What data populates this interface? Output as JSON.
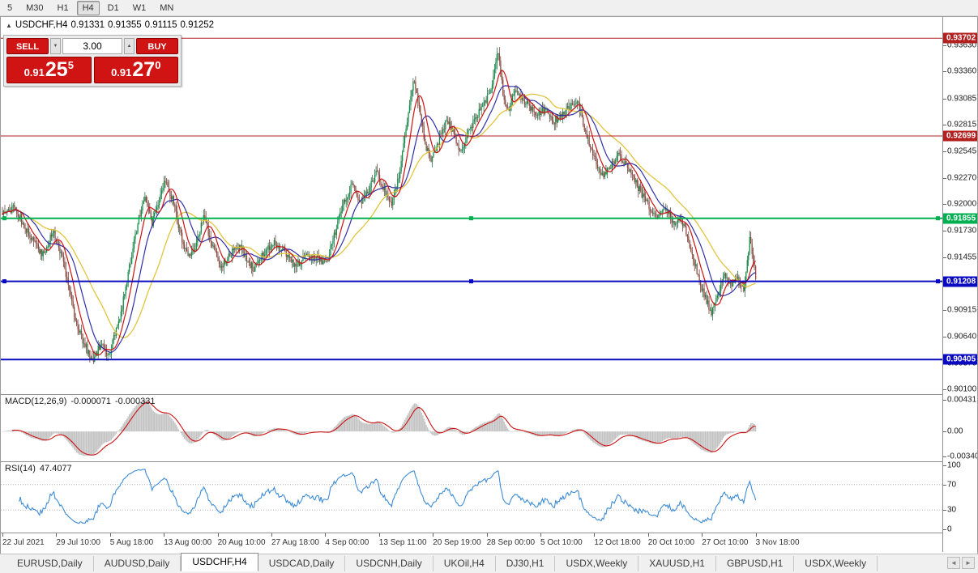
{
  "colors": {
    "trade_red": "#d01313",
    "line_red": "#b22020",
    "line_green": "#00b050",
    "line_blue": "#0a0ac0",
    "candle_up": "#0c9148",
    "candle_up_edge": "#0a5c30",
    "candle_down": "#8f4a40",
    "candle_down_edge": "#5e2a22",
    "ma_red": "#cc1111",
    "ma_blue": "#3030a8",
    "ma_yellow": "#e2c43c",
    "macd_hist": "#c3c3c3",
    "macd_signal": "#cc1111",
    "rsi_line": "#3d8bd4"
  },
  "icons": {
    "collapse": "▲",
    "spin_up": "▲",
    "spin_down": "▼",
    "tab_scroll_left": "◄",
    "tab_scroll_right": "►"
  },
  "toolbar": {
    "timeframes": [
      "5",
      "M30",
      "H1",
      "H4",
      "D1",
      "W1",
      "MN"
    ],
    "active": "H4"
  },
  "chart": {
    "header": {
      "title": "USDCHF,H4",
      "open": "0.91331",
      "high": "0.91355",
      "low": "0.91115",
      "close": "0.91252"
    },
    "trade_panel": {
      "sell_label": "SELL",
      "buy_label": "BUY",
      "volume": "3.00",
      "sell_price": {
        "prefix": "0.91",
        "pips": "25",
        "sup": "5"
      },
      "buy_price": {
        "prefix": "0.91",
        "pips": "27",
        "sup": "0"
      }
    },
    "hlines": [
      {
        "price": 0.93702,
        "label": "0.93702",
        "color_key": "line_red",
        "width": 1,
        "handles": false
      },
      {
        "price": 0.92699,
        "label": "0.92699",
        "color_key": "line_red",
        "width": 1,
        "handles": false
      },
      {
        "price": 0.91855,
        "label": "0.91855",
        "color_key": "line_green",
        "width": 2,
        "handles": true
      },
      {
        "price": 0.91208,
        "label": "0.91208",
        "color_key": "line_blue",
        "width": 2,
        "handles": true
      },
      {
        "price": 0.90405,
        "label": "0.90405",
        "color_key": "line_blue",
        "width": 2,
        "handles": false
      }
    ],
    "y_ticks": [
      "0.93630",
      "0.93360",
      "0.93085",
      "0.92815",
      "0.92545",
      "0.92270",
      "0.92000",
      "0.91730",
      "0.91455",
      "0.91185",
      "0.90915",
      "0.90640",
      "0.90370",
      "0.90100"
    ],
    "x_labels": [
      "22 Jul 2021",
      "29 Jul 10:00",
      "5 Aug 18:00",
      "13 Aug 00:00",
      "20 Aug 10:00",
      "27 Aug 18:00",
      "4 Sep 00:00",
      "13 Sep 11:00",
      "20 Sep 19:00",
      "28 Sep 00:00",
      "5 Oct 10:00",
      "12 Oct 18:00",
      "20 Oct 10:00",
      "27 Oct 10:00",
      "3 Nov 18:00"
    ]
  },
  "macd": {
    "name": "MACD(12,26,9)",
    "value_main": "-0.000071",
    "value_signal": "-0.000331",
    "ticks": [
      {
        "label": "0.00431",
        "value": 0.00431
      },
      {
        "label": "0.00",
        "value": 0
      },
      {
        "label": "-0.00340",
        "value": -0.0034
      }
    ]
  },
  "rsi": {
    "name": "RSI(14)",
    "value": "47.4077",
    "ticks": [
      {
        "label": "100",
        "value": 100
      },
      {
        "label": "70",
        "value": 70
      },
      {
        "label": "30",
        "value": 30
      },
      {
        "label": "0",
        "value": 0
      }
    ],
    "levels": [
      70,
      30
    ]
  },
  "tabs": {
    "active_index": 2,
    "items": [
      "EURUSD,Daily",
      "AUDUSD,Daily",
      "USDCHF,H4",
      "USDCAD,Daily",
      "USDCNH,Daily",
      "UKOil,H4",
      "DJ30,H1",
      "USDX,Weekly",
      "XAUUSD,H1",
      "GBPUSD,H1",
      "USDX,Weekly"
    ]
  },
  "chart_data": {
    "type": "candlestick",
    "symbol": "USDCHF",
    "timeframe": "H4",
    "ohlc_current": {
      "open": 0.91331,
      "high": 0.91355,
      "low": 0.91115,
      "close": 0.91252
    },
    "price_max": 0.9392,
    "price_min": 0.9005,
    "num_candles": 630,
    "data_right_fraction": 0.8,
    "horizontal_levels": [
      0.93702,
      0.92699,
      0.91855,
      0.91208,
      0.90405
    ],
    "moving_average_periods": {
      "red": 10,
      "blue": 21,
      "yellow": 45
    },
    "macd_params": [
      12,
      26,
      9
    ],
    "rsi_period": 14,
    "price_path": [
      [
        0.0,
        0.919
      ],
      [
        0.016,
        0.9197
      ],
      [
        0.038,
        0.9165
      ],
      [
        0.054,
        0.9148
      ],
      [
        0.067,
        0.9172
      ],
      [
        0.081,
        0.914
      ],
      [
        0.097,
        0.908
      ],
      [
        0.108,
        0.9058
      ],
      [
        0.12,
        0.9038
      ],
      [
        0.131,
        0.9058
      ],
      [
        0.14,
        0.9042
      ],
      [
        0.153,
        0.9075
      ],
      [
        0.163,
        0.911
      ],
      [
        0.172,
        0.915
      ],
      [
        0.181,
        0.9185
      ],
      [
        0.188,
        0.9207
      ],
      [
        0.199,
        0.918
      ],
      [
        0.206,
        0.92
      ],
      [
        0.215,
        0.9226
      ],
      [
        0.226,
        0.9205
      ],
      [
        0.237,
        0.9168
      ],
      [
        0.247,
        0.9145
      ],
      [
        0.258,
        0.916
      ],
      [
        0.267,
        0.919
      ],
      [
        0.277,
        0.916
      ],
      [
        0.29,
        0.9135
      ],
      [
        0.303,
        0.915
      ],
      [
        0.317,
        0.9155
      ],
      [
        0.333,
        0.9133
      ],
      [
        0.346,
        0.915
      ],
      [
        0.36,
        0.916
      ],
      [
        0.376,
        0.915
      ],
      [
        0.389,
        0.9135
      ],
      [
        0.403,
        0.915
      ],
      [
        0.417,
        0.9145
      ],
      [
        0.43,
        0.9138
      ],
      [
        0.443,
        0.9175
      ],
      [
        0.454,
        0.9205
      ],
      [
        0.465,
        0.922
      ],
      [
        0.475,
        0.92
      ],
      [
        0.486,
        0.9215
      ],
      [
        0.497,
        0.9232
      ],
      [
        0.508,
        0.9213
      ],
      [
        0.516,
        0.9198
      ],
      [
        0.527,
        0.923
      ],
      [
        0.538,
        0.929
      ],
      [
        0.546,
        0.9328
      ],
      [
        0.554,
        0.9298
      ],
      [
        0.561,
        0.926
      ],
      [
        0.57,
        0.9244
      ],
      [
        0.581,
        0.927
      ],
      [
        0.591,
        0.9286
      ],
      [
        0.6,
        0.927
      ],
      [
        0.608,
        0.9254
      ],
      [
        0.618,
        0.9272
      ],
      [
        0.629,
        0.929
      ],
      [
        0.64,
        0.9302
      ],
      [
        0.651,
        0.9325
      ],
      [
        0.658,
        0.9358
      ],
      [
        0.665,
        0.931
      ],
      [
        0.672,
        0.9295
      ],
      [
        0.68,
        0.9318
      ],
      [
        0.688,
        0.931
      ],
      [
        0.699,
        0.93
      ],
      [
        0.71,
        0.929
      ],
      [
        0.72,
        0.9297
      ],
      [
        0.731,
        0.9285
      ],
      [
        0.742,
        0.929
      ],
      [
        0.753,
        0.93
      ],
      [
        0.763,
        0.9308
      ],
      [
        0.774,
        0.9275
      ],
      [
        0.785,
        0.925
      ],
      [
        0.796,
        0.9228
      ],
      [
        0.806,
        0.9236
      ],
      [
        0.817,
        0.925
      ],
      [
        0.828,
        0.924
      ],
      [
        0.839,
        0.9224
      ],
      [
        0.849,
        0.921
      ],
      [
        0.86,
        0.9196
      ],
      [
        0.871,
        0.9186
      ],
      [
        0.882,
        0.9196
      ],
      [
        0.89,
        0.918
      ],
      [
        0.901,
        0.9186
      ],
      [
        0.912,
        0.916
      ],
      [
        0.922,
        0.913
      ],
      [
        0.933,
        0.9104
      ],
      [
        0.942,
        0.9088
      ],
      [
        0.95,
        0.911
      ],
      [
        0.959,
        0.9126
      ],
      [
        0.968,
        0.9118
      ],
      [
        0.976,
        0.9122
      ],
      [
        0.985,
        0.9112
      ],
      [
        0.992,
        0.9165
      ],
      [
        1.0,
        0.9125
      ]
    ]
  }
}
